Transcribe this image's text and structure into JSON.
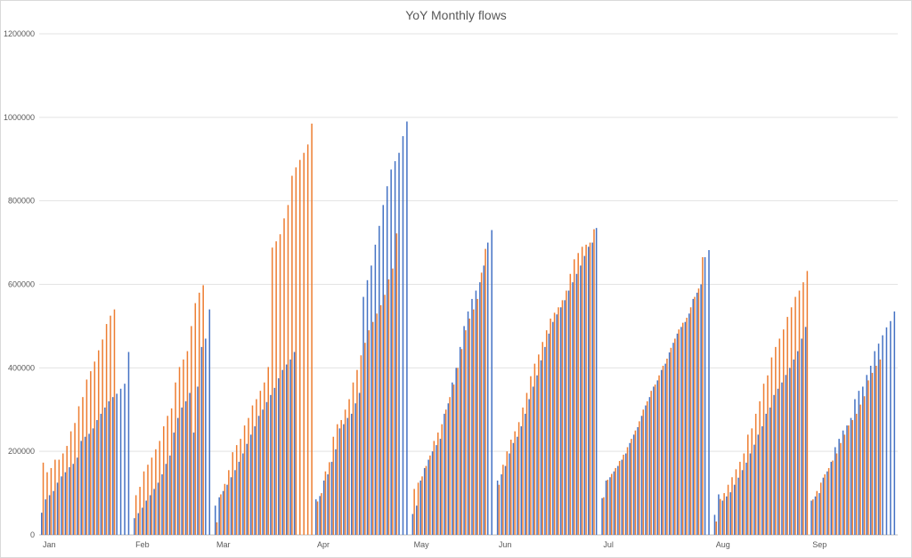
{
  "chart_data": {
    "type": "bar",
    "title": "YoY Monthly flows",
    "xlabel": "",
    "ylabel": "",
    "ylim": [
      0,
      1200000
    ],
    "y_ticks": [
      0,
      200000,
      400000,
      600000,
      800000,
      1000000,
      1200000
    ],
    "y_tick_labels": [
      "0",
      "200000",
      "400000",
      "600000",
      "800000",
      "1000000",
      "1200000"
    ],
    "grid": "horizontal",
    "legend": "none",
    "months": [
      "Jan",
      "Feb",
      "Mar",
      "Apr",
      "May",
      "Jun",
      "Jul",
      "Aug",
      "Sep"
    ],
    "series_colors": [
      "#4472c4",
      "#ed7d31"
    ],
    "series": [
      {
        "values_by_month": [
          [
            53000,
            85000,
            95000,
            105000,
            125000,
            140000,
            150000,
            162000,
            170000,
            185000,
            225000,
            235000,
            242000,
            255000,
            275000,
            290000,
            305000,
            320000,
            330000,
            338000,
            350000,
            362000,
            438000
          ],
          [
            40000,
            52000,
            65000,
            82000,
            95000,
            110000,
            125000,
            145000,
            170000,
            190000,
            245000,
            280000,
            305000,
            320000,
            340000,
            245000,
            355000,
            450000,
            470000,
            540000
          ],
          [
            70000,
            90000,
            105000,
            120000,
            138000,
            155000,
            175000,
            195000,
            218000,
            240000,
            260000,
            285000,
            300000,
            318000,
            335000,
            352000,
            375000,
            395000,
            408000,
            420000,
            438000
          ],
          [
            85000,
            93000,
            130000,
            145000,
            175000,
            205000,
            255000,
            265000,
            280000,
            290000,
            315000,
            340000,
            570000,
            610000,
            645000,
            695000,
            740000,
            790000,
            835000,
            875000,
            895000,
            915000,
            955000,
            990000
          ],
          [
            50000,
            70000,
            130000,
            160000,
            180000,
            200000,
            215000,
            230000,
            290000,
            315000,
            365000,
            400000,
            450000,
            500000,
            535000,
            565000,
            585000,
            605000,
            645000,
            700000,
            730000
          ],
          [
            130000,
            145000,
            165000,
            195000,
            220000,
            235000,
            260000,
            290000,
            325000,
            355000,
            382000,
            418000,
            450000,
            482000,
            510000,
            528000,
            545000,
            562000,
            585000,
            605000,
            625000,
            645000,
            668000,
            690000,
            700000,
            735000
          ],
          [
            88000,
            130000,
            138000,
            152000,
            165000,
            180000,
            195000,
            220000,
            240000,
            258000,
            285000,
            310000,
            330000,
            355000,
            370000,
            395000,
            410000,
            437000,
            460000,
            482000,
            498000,
            510000,
            530000,
            565000,
            580000,
            600000,
            665000,
            682000
          ],
          [
            48000,
            97000,
            82000,
            92000,
            102000,
            120000,
            137000,
            155000,
            173000,
            195000,
            216000,
            240000,
            260000,
            290000,
            305000,
            335000,
            350000,
            365000,
            383000,
            400000,
            420000,
            440000,
            470000,
            498000
          ],
          [
            82000,
            92000,
            100000,
            137000,
            152000,
            175000,
            210000,
            230000,
            250000,
            262000,
            280000,
            325000,
            345000,
            355000,
            383000,
            405000,
            440000,
            458000,
            478000,
            497000,
            512000,
            535000
          ]
        ]
      },
      {
        "values_by_month": [
          [
            173000,
            150000,
            160000,
            180000,
            180000,
            195000,
            213000,
            248000,
            268000,
            308000,
            330000,
            372000,
            392000,
            415000,
            442000,
            468000,
            505000,
            525000,
            540000,
            null,
            null,
            null,
            null
          ],
          [
            95000,
            115000,
            152000,
            168000,
            185000,
            205000,
            225000,
            260000,
            285000,
            303000,
            365000,
            402000,
            420000,
            440000,
            500000,
            555000,
            580000,
            598000,
            null,
            null
          ],
          [
            30000,
            97000,
            122000,
            155000,
            198000,
            215000,
            230000,
            262000,
            280000,
            310000,
            325000,
            345000,
            365000,
            402000,
            688000,
            703000,
            720000,
            758000,
            790000,
            860000,
            880000,
            898000,
            915000,
            935000,
            985000
          ],
          [
            80000,
            100000,
            152000,
            174000,
            235000,
            265000,
            275000,
            300000,
            325000,
            365000,
            395000,
            430000,
            460000,
            490000,
            510000,
            530000,
            550000,
            575000,
            612000,
            638000,
            722000
          ],
          [
            110000,
            125000,
            140000,
            165000,
            190000,
            225000,
            245000,
            265000,
            300000,
            330000,
            360000,
            400000,
            445000,
            490000,
            518000,
            540000,
            565000,
            628000,
            685000
          ],
          [
            120000,
            168000,
            200000,
            228000,
            248000,
            270000,
            305000,
            340000,
            380000,
            410000,
            432000,
            462000,
            490000,
            518000,
            532000,
            545000,
            562000,
            585000,
            625000,
            660000,
            675000,
            690000,
            695000,
            700000,
            732000
          ],
          [
            90000,
            132000,
            146000,
            160000,
            177000,
            192000,
            210000,
            230000,
            250000,
            272000,
            300000,
            320000,
            345000,
            360000,
            382000,
            405000,
            422000,
            448000,
            470000,
            492000,
            508000,
            520000,
            545000,
            570000,
            590000,
            665000
          ],
          [
            32000,
            86000,
            100000,
            120000,
            138000,
            157000,
            175000,
            195000,
            240000,
            255000,
            290000,
            320000,
            362000,
            382000,
            425000,
            450000,
            470000,
            492000,
            522000,
            545000,
            570000,
            585000,
            605000,
            632000
          ],
          [
            85000,
            105000,
            125000,
            145000,
            160000,
            178000,
            195000,
            220000,
            240000,
            262000,
            275000,
            290000,
            312000,
            332000,
            370000,
            388000,
            405000,
            420000,
            null,
            null,
            null,
            null
          ]
        ]
      }
    ]
  }
}
